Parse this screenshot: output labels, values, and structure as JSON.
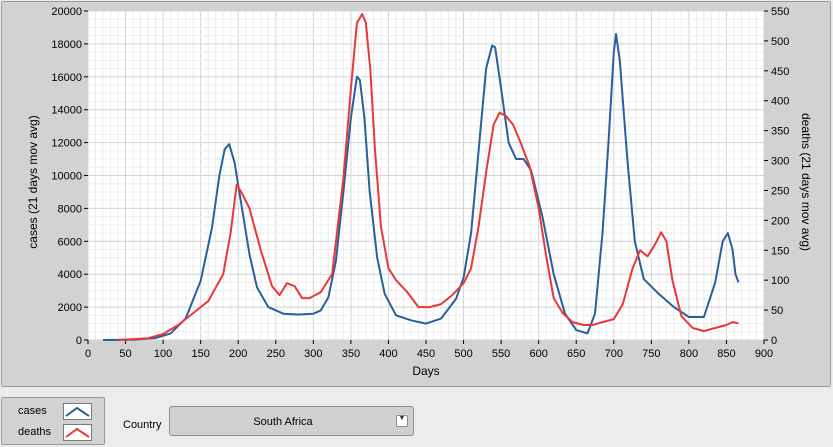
{
  "legend": {
    "cases_label": "cases",
    "deaths_label": "deaths"
  },
  "country": {
    "label": "Country",
    "selected": "South Africa"
  },
  "icons": {
    "dropdown": "chevron-down-icon"
  },
  "colors": {
    "cases": "#2a5f9e",
    "deaths": "#e8383a",
    "plot_bg": "#ffffff",
    "panel_bg": "#d2d2d2"
  },
  "chart_data": {
    "type": "line",
    "title": "",
    "xlabel": "Days",
    "ylabel_left": "cases  (21 days mov avg)",
    "ylabel_right": "deaths  (21 days mov avg)",
    "xlim": [
      0,
      900
    ],
    "ylim_left": [
      0,
      20000
    ],
    "ylim_right": [
      0,
      550
    ],
    "x_ticks": [
      0,
      50,
      100,
      150,
      200,
      250,
      300,
      350,
      400,
      450,
      500,
      550,
      600,
      650,
      700,
      750,
      800,
      850,
      900
    ],
    "y_left_ticks": [
      0,
      2000,
      4000,
      6000,
      8000,
      10000,
      12000,
      14000,
      16000,
      18000,
      20000
    ],
    "y_right_ticks": [
      0,
      50,
      100,
      150,
      200,
      250,
      300,
      350,
      400,
      450,
      500,
      550
    ],
    "grid": true,
    "series": [
      {
        "name": "cases",
        "axis": "left",
        "color": "#2a5f9e",
        "points": [
          [
            20,
            0
          ],
          [
            60,
            20
          ],
          [
            90,
            120
          ],
          [
            110,
            400
          ],
          [
            130,
            1300
          ],
          [
            150,
            3600
          ],
          [
            165,
            6800
          ],
          [
            175,
            10000
          ],
          [
            182,
            11600
          ],
          [
            188,
            11900
          ],
          [
            195,
            10800
          ],
          [
            205,
            8000
          ],
          [
            215,
            5200
          ],
          [
            225,
            3200
          ],
          [
            240,
            2000
          ],
          [
            260,
            1600
          ],
          [
            280,
            1550
          ],
          [
            300,
            1600
          ],
          [
            310,
            1800
          ],
          [
            320,
            2600
          ],
          [
            330,
            4800
          ],
          [
            340,
            9000
          ],
          [
            350,
            13500
          ],
          [
            358,
            16000
          ],
          [
            362,
            15800
          ],
          [
            368,
            13500
          ],
          [
            375,
            9000
          ],
          [
            385,
            5000
          ],
          [
            395,
            2800
          ],
          [
            410,
            1500
          ],
          [
            430,
            1200
          ],
          [
            450,
            1000
          ],
          [
            470,
            1300
          ],
          [
            490,
            2500
          ],
          [
            500,
            3800
          ],
          [
            510,
            6500
          ],
          [
            520,
            11500
          ],
          [
            530,
            16500
          ],
          [
            538,
            17900
          ],
          [
            542,
            17800
          ],
          [
            550,
            15300
          ],
          [
            560,
            12000
          ],
          [
            570,
            11000
          ],
          [
            580,
            11000
          ],
          [
            590,
            10300
          ],
          [
            605,
            7500
          ],
          [
            620,
            4000
          ],
          [
            635,
            1600
          ],
          [
            650,
            600
          ],
          [
            665,
            400
          ],
          [
            675,
            1600
          ],
          [
            685,
            6500
          ],
          [
            693,
            12000
          ],
          [
            700,
            17500
          ],
          [
            703,
            18600
          ],
          [
            708,
            17000
          ],
          [
            718,
            11000
          ],
          [
            728,
            6000
          ],
          [
            740,
            3700
          ],
          [
            760,
            2800
          ],
          [
            780,
            2000
          ],
          [
            800,
            1400
          ],
          [
            820,
            1400
          ],
          [
            835,
            3500
          ],
          [
            845,
            6000
          ],
          [
            852,
            6500
          ],
          [
            858,
            5500
          ],
          [
            862,
            4000
          ],
          [
            866,
            3500
          ]
        ]
      },
      {
        "name": "deaths",
        "axis": "right",
        "color": "#e8383a",
        "points": [
          [
            40,
            0
          ],
          [
            80,
            3
          ],
          [
            100,
            10
          ],
          [
            120,
            25
          ],
          [
            140,
            45
          ],
          [
            160,
            65
          ],
          [
            180,
            110
          ],
          [
            190,
            180
          ],
          [
            198,
            260
          ],
          [
            205,
            245
          ],
          [
            215,
            220
          ],
          [
            230,
            150
          ],
          [
            245,
            90
          ],
          [
            255,
            75
          ],
          [
            265,
            95
          ],
          [
            275,
            90
          ],
          [
            285,
            70
          ],
          [
            295,
            70
          ],
          [
            310,
            80
          ],
          [
            325,
            110
          ],
          [
            340,
            270
          ],
          [
            350,
            420
          ],
          [
            358,
            530
          ],
          [
            365,
            545
          ],
          [
            370,
            530
          ],
          [
            376,
            450
          ],
          [
            382,
            320
          ],
          [
            390,
            190
          ],
          [
            400,
            120
          ],
          [
            410,
            100
          ],
          [
            425,
            80
          ],
          [
            440,
            55
          ],
          [
            455,
            55
          ],
          [
            470,
            60
          ],
          [
            485,
            75
          ],
          [
            500,
            95
          ],
          [
            510,
            120
          ],
          [
            520,
            190
          ],
          [
            530,
            280
          ],
          [
            540,
            360
          ],
          [
            548,
            380
          ],
          [
            556,
            375
          ],
          [
            566,
            360
          ],
          [
            576,
            330
          ],
          [
            588,
            290
          ],
          [
            600,
            220
          ],
          [
            610,
            140
          ],
          [
            620,
            70
          ],
          [
            632,
            45
          ],
          [
            645,
            30
          ],
          [
            660,
            25
          ],
          [
            672,
            25
          ],
          [
            685,
            30
          ],
          [
            700,
            35
          ],
          [
            712,
            60
          ],
          [
            725,
            120
          ],
          [
            735,
            150
          ],
          [
            745,
            140
          ],
          [
            755,
            160
          ],
          [
            763,
            180
          ],
          [
            770,
            165
          ],
          [
            778,
            100
          ],
          [
            790,
            40
          ],
          [
            805,
            20
          ],
          [
            820,
            15
          ],
          [
            835,
            20
          ],
          [
            850,
            25
          ],
          [
            858,
            30
          ],
          [
            866,
            28
          ]
        ]
      }
    ]
  }
}
